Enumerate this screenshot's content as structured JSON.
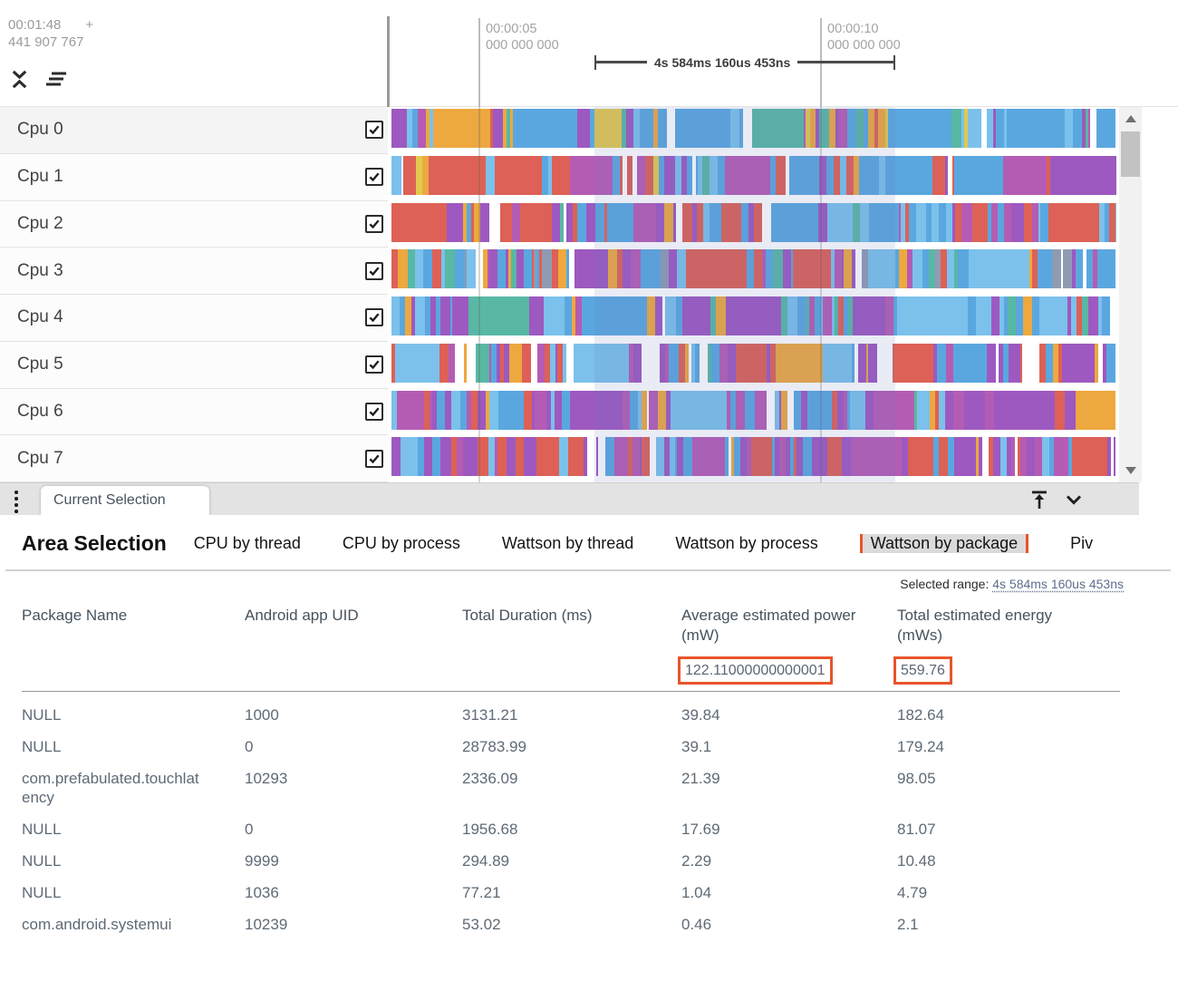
{
  "timeline": {
    "origin_time": "00:01:48",
    "origin_plus": "+",
    "origin_offset": "441 907 767",
    "gridlines": [
      {
        "line1": "00:00:05",
        "line2": "000 000 000"
      },
      {
        "line1": "00:00:10",
        "line2": "000 000 000"
      }
    ],
    "span_marker": "4s 584ms 160us 453ns",
    "tracks": [
      {
        "label": "Cpu 0",
        "checked": true
      },
      {
        "label": "Cpu 1",
        "checked": true
      },
      {
        "label": "Cpu 2",
        "checked": true
      },
      {
        "label": "Cpu 3",
        "checked": true
      },
      {
        "label": "Cpu 4",
        "checked": true
      },
      {
        "label": "Cpu 5",
        "checked": true
      },
      {
        "label": "Cpu 6",
        "checked": true
      },
      {
        "label": "Cpu 7",
        "checked": true
      }
    ],
    "palette": {
      "blue": "#5aa7e0",
      "blue2": "#7bc1ec",
      "purple": "#9d59c0",
      "purple2": "#b45cb4",
      "red": "#dd6156",
      "orange": "#eda83f",
      "teal": "#58b8a4",
      "yellow": "#e3c94e",
      "slate": "#8f9bb3",
      "white": "#ffffff"
    }
  },
  "tab_bar": {
    "tabs": [
      {
        "label": "Current Selection",
        "active": true
      }
    ]
  },
  "detail": {
    "title": "Area Selection",
    "tabs": [
      {
        "label": "CPU by thread",
        "active": false
      },
      {
        "label": "CPU by process",
        "active": false
      },
      {
        "label": "Wattson by thread",
        "active": false
      },
      {
        "label": "Wattson by process",
        "active": false
      },
      {
        "label": "Wattson by package",
        "active": true
      },
      {
        "label": "Piv",
        "active": false
      }
    ],
    "selected_range_label": "Selected range:",
    "selected_range_value": "4s 584ms 160us 453ns",
    "table": {
      "columns": [
        "Package Name",
        "Android app UID",
        "Total Duration (ms)",
        "Average estimated power (mW)",
        "Total estimated energy (mWs)"
      ],
      "summary": {
        "avg_power": "122.11000000000001",
        "total_energy": "559.76"
      },
      "rows": [
        [
          "NULL",
          "1000",
          "3131.21",
          "39.84",
          "182.64"
        ],
        [
          "NULL",
          "0",
          "28783.99",
          "39.1",
          "179.24"
        ],
        [
          "com.prefabulated.touchlatency",
          "10293",
          "2336.09",
          "21.39",
          "98.05"
        ],
        [
          "NULL",
          "0",
          "1956.68",
          "17.69",
          "81.07"
        ],
        [
          "NULL",
          "9999",
          "294.89",
          "2.29",
          "10.48"
        ],
        [
          "NULL",
          "1036",
          "77.21",
          "1.04",
          "4.79"
        ],
        [
          "com.android.systemui",
          "10239",
          "53.02",
          "0.46",
          "2.1"
        ]
      ]
    }
  },
  "colors": {
    "highlight_orange": "#e8542c",
    "selection_overlay": "rgba(110,118,185,0.15)",
    "link_blue": "#5c6e8c",
    "ruler_gray": "#9a9a9a"
  }
}
